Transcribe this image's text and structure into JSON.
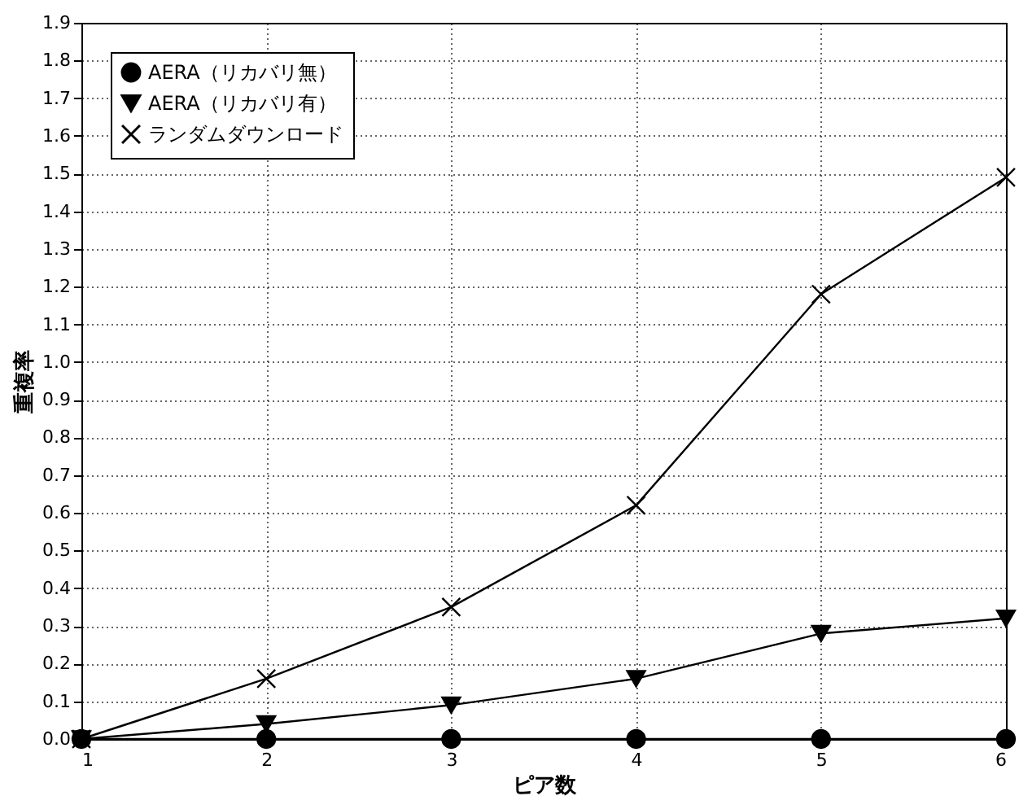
{
  "chart_data": {
    "type": "line",
    "xlabel": "ピア数",
    "ylabel": "重複率",
    "x": [
      1,
      2,
      3,
      4,
      5,
      6
    ],
    "series": [
      {
        "name": "AERA（リカバリ無）",
        "color": "#000000",
        "marker": "circle",
        "values": [
          0,
          0,
          0,
          0,
          0,
          0
        ]
      },
      {
        "name": "AERA（リカバリ有）",
        "color": "#000000",
        "marker": "triangle",
        "values": [
          0,
          0.04,
          0.09,
          0.16,
          0.28,
          0.32
        ]
      },
      {
        "name": "ランダムダウンロード",
        "color": "#000000",
        "marker": "cross",
        "values": [
          0,
          0.16,
          0.35,
          0.62,
          1.18,
          1.49
        ]
      }
    ],
    "xlim": [
      1,
      6
    ],
    "xticks": [
      1,
      2,
      3,
      4,
      5,
      6
    ],
    "ylim": [
      0,
      1.9
    ],
    "yticks": [
      {
        "value": 0,
        "label": "0.0"
      },
      0.1,
      0.2,
      0.3,
      0.4,
      0.5,
      0.6,
      0.7,
      0.8,
      0.9,
      {
        "value": 1,
        "label": "1.0"
      },
      1.1,
      1.2,
      1.3,
      1.4,
      1.5,
      1.6,
      1.7,
      1.8,
      1.9
    ],
    "grid": true,
    "legend": "top left",
    "line_style": "solid"
  }
}
